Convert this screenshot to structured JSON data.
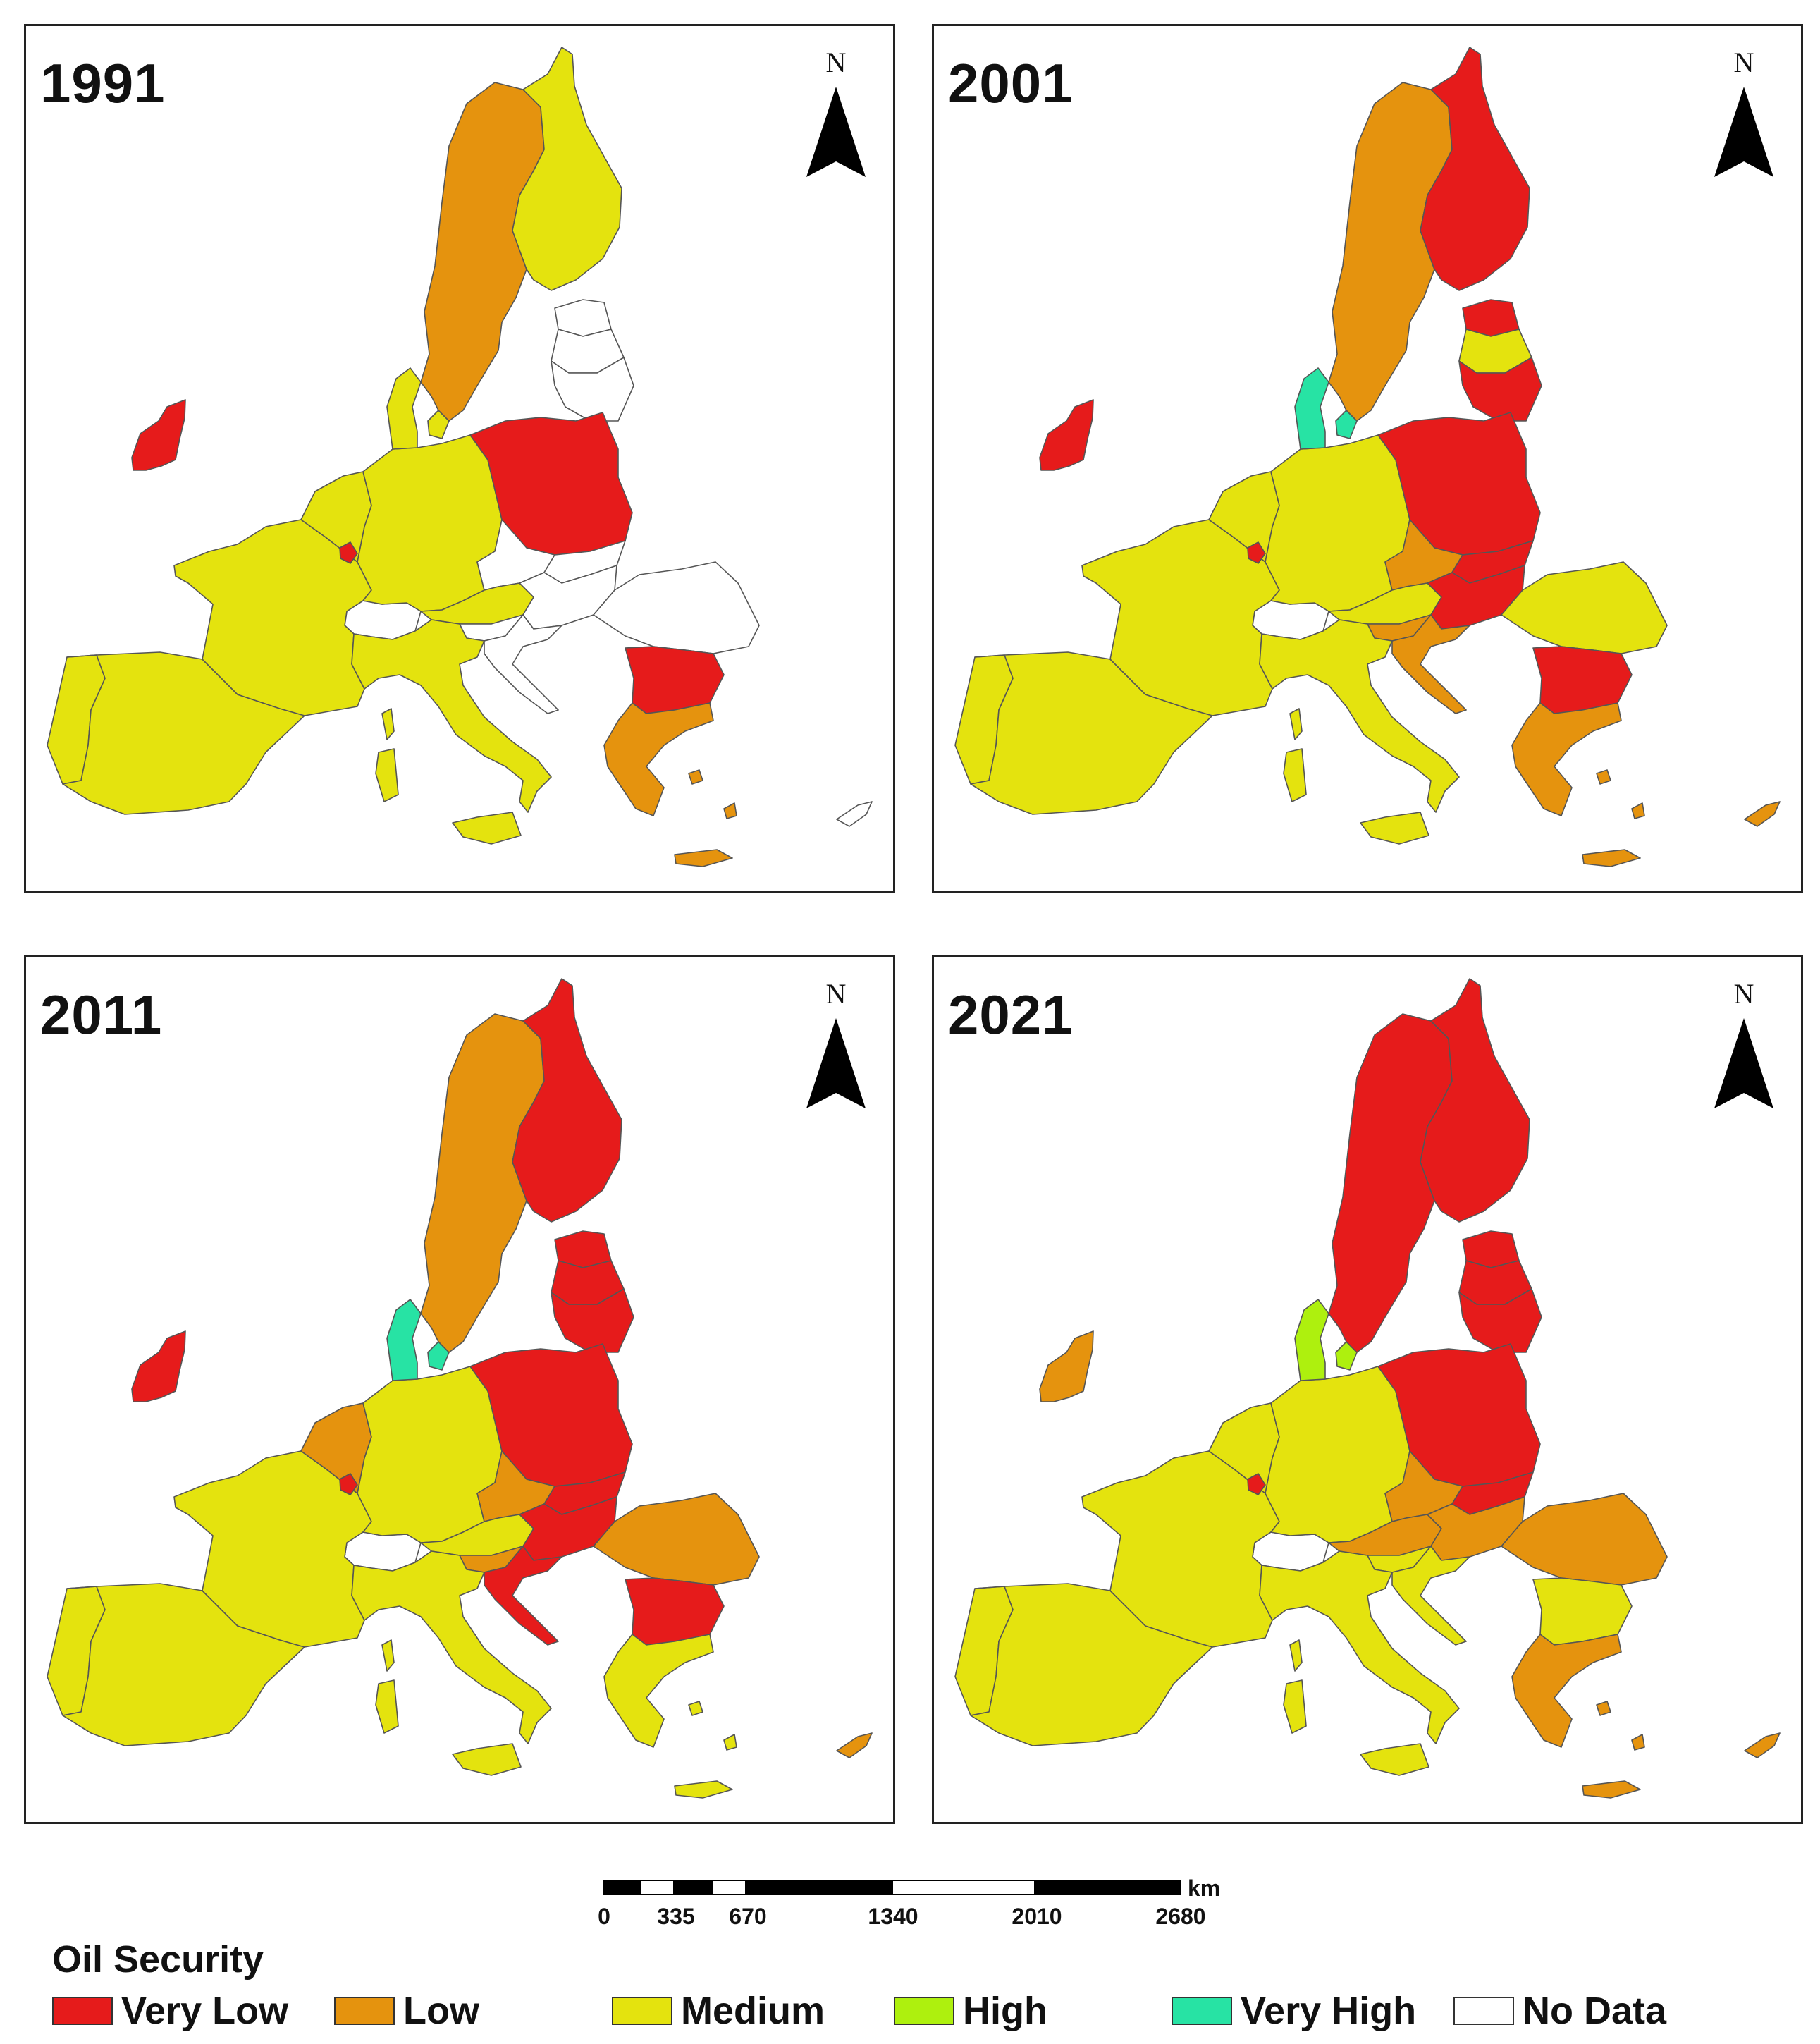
{
  "panels": [
    {
      "year": "1991",
      "north_label": "N"
    },
    {
      "year": "2001",
      "north_label": "N"
    },
    {
      "year": "2011",
      "north_label": "N"
    },
    {
      "year": "2021",
      "north_label": "N"
    }
  ],
  "classes": {
    "very_low": {
      "label": "Very Low",
      "color": "#e61b1b"
    },
    "low": {
      "label": "Low",
      "color": "#e5930e"
    },
    "medium": {
      "label": "Medium",
      "color": "#e4e30e"
    },
    "high": {
      "label": "High",
      "color": "#aef00e"
    },
    "very_high": {
      "label": "Very High",
      "color": "#27e3a4"
    },
    "no_data": {
      "label": "No Data",
      "color": "#ffffff"
    }
  },
  "regions": {
    "ireland": [
      "very_low",
      "very_low",
      "very_low",
      "low"
    ],
    "portugal": [
      "medium",
      "medium",
      "medium",
      "medium"
    ],
    "spain": [
      "medium",
      "medium",
      "medium",
      "medium"
    ],
    "france": [
      "medium",
      "medium",
      "medium",
      "medium"
    ],
    "benelux": [
      "medium",
      "medium",
      "low",
      "medium"
    ],
    "luxembourg": [
      "very_low",
      "very_low",
      "very_low",
      "very_low"
    ],
    "germany": [
      "medium",
      "medium",
      "medium",
      "medium"
    ],
    "denmark": [
      "medium",
      "very_high",
      "very_high",
      "high"
    ],
    "sweden": [
      "low",
      "low",
      "low",
      "very_low"
    ],
    "finland": [
      "medium",
      "very_low",
      "very_low",
      "very_low"
    ],
    "baltic_north": [
      "no_data",
      "very_low",
      "very_low",
      "very_low"
    ],
    "baltic_mid": [
      "no_data",
      "medium",
      "very_low",
      "very_low"
    ],
    "baltic_south": [
      "no_data",
      "very_low",
      "very_low",
      "very_low"
    ],
    "poland": [
      "very_low",
      "very_low",
      "very_low",
      "very_low"
    ],
    "czechia": [
      "no_data",
      "low",
      "low",
      "low"
    ],
    "slovakia": [
      "no_data",
      "very_low",
      "very_low",
      "very_low"
    ],
    "austria": [
      "medium",
      "medium",
      "medium",
      "low"
    ],
    "hungary": [
      "no_data",
      "very_low",
      "very_low",
      "low"
    ],
    "slovenia": [
      "no_data",
      "low",
      "low",
      "medium"
    ],
    "croatia": [
      "no_data",
      "low",
      "very_low",
      "medium"
    ],
    "romania": [
      "no_data",
      "medium",
      "low",
      "low"
    ],
    "bulgaria": [
      "very_low",
      "very_low",
      "very_low",
      "medium"
    ],
    "italy": [
      "medium",
      "medium",
      "medium",
      "medium"
    ],
    "sardinia": [
      "medium",
      "medium",
      "medium",
      "medium"
    ],
    "corsica": [
      "medium",
      "medium",
      "medium",
      "medium"
    ],
    "sicily": [
      "medium",
      "medium",
      "medium",
      "medium"
    ],
    "greece": [
      "low",
      "low",
      "medium",
      "low"
    ],
    "crete": [
      "low",
      "low",
      "medium",
      "low"
    ],
    "cyprus": [
      "no_data",
      "low",
      "low",
      "low"
    ]
  },
  "scale_bar": {
    "ticks": [
      "0",
      "335",
      "670",
      "1340",
      "2010",
      "2680"
    ],
    "unit": "km"
  },
  "legend": {
    "title": "Oil Security",
    "items": [
      {
        "label": "Very Low",
        "color": "#e61b1b"
      },
      {
        "label": "Low",
        "color": "#e5930e"
      },
      {
        "label": "Medium",
        "color": "#e4e30e"
      },
      {
        "label": "High",
        "color": "#aef00e"
      },
      {
        "label": "Very High",
        "color": "#27e3a4"
      },
      {
        "label": "No Data",
        "color": "#ffffff"
      }
    ]
  }
}
